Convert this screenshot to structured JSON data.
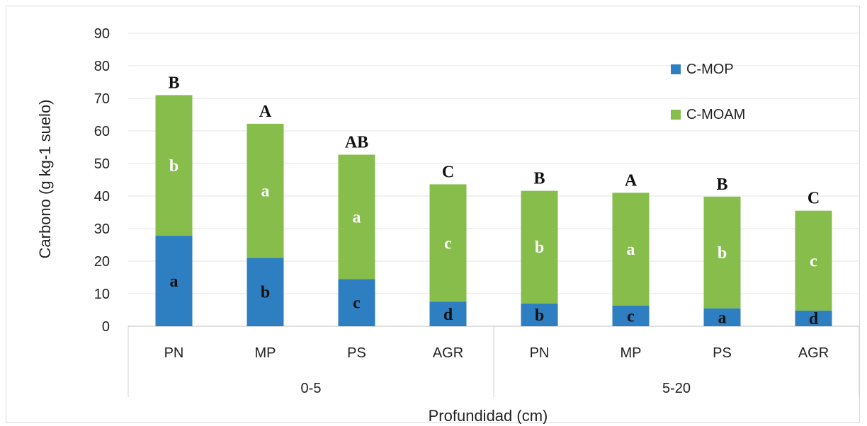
{
  "chart_data": {
    "type": "bar",
    "stacked": true,
    "categories": [
      "PN",
      "MP",
      "PS",
      "AGR",
      "PN",
      "MP",
      "PS",
      "AGR"
    ],
    "groups": [
      {
        "label": "0-5",
        "categories": [
          "PN",
          "MP",
          "PS",
          "AGR"
        ]
      },
      {
        "label": "5-20",
        "categories": [
          "PN",
          "MP",
          "PS",
          "AGR"
        ]
      }
    ],
    "series": [
      {
        "name": "C-MOP",
        "color": "#2E7EC2",
        "values": [
          27.8,
          21.0,
          14.5,
          7.5,
          7.0,
          6.3,
          5.5,
          4.8
        ],
        "labels": [
          "a",
          "b",
          "c",
          "d",
          "b",
          "c",
          "a",
          "d"
        ],
        "label_color": "#111111"
      },
      {
        "name": "C-MOAM",
        "color": "#86BD4B",
        "values": [
          43.2,
          41.2,
          38.2,
          36.1,
          34.6,
          34.7,
          34.3,
          30.7
        ],
        "labels": [
          "b",
          "a",
          "a",
          "c",
          "b",
          "a",
          "b",
          "c"
        ],
        "label_color": "#ffffff"
      }
    ],
    "total_labels": [
      "B",
      "A",
      "AB",
      "C",
      "B",
      "A",
      "B",
      "C"
    ],
    "xlabel": "Profundidad (cm)",
    "ylabel": "Carbono (g kg-1 suelo)",
    "ylim": [
      0,
      90
    ],
    "yticks": [
      0,
      10,
      20,
      30,
      40,
      50,
      60,
      70,
      80,
      90
    ],
    "grid": true,
    "legend_position": "right"
  }
}
